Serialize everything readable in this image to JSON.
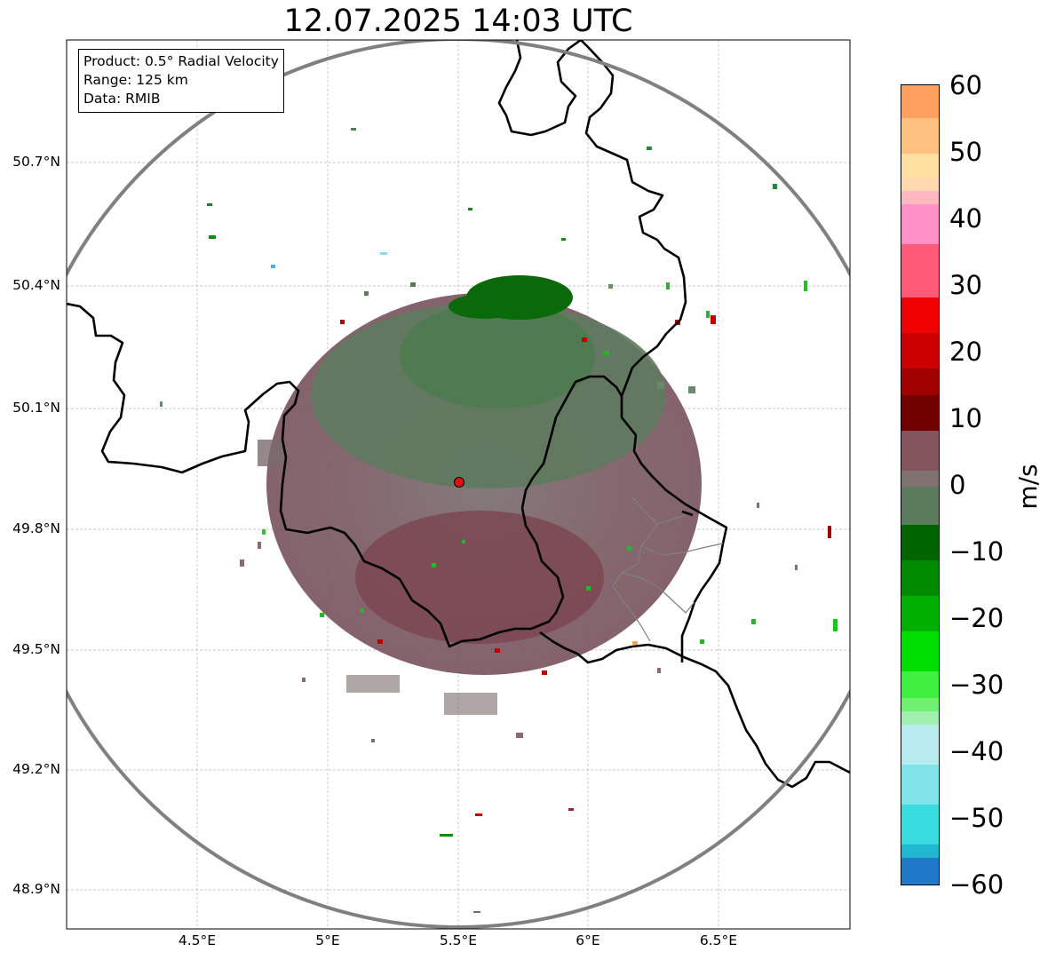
{
  "title": "12.07.2025 14:03 UTC",
  "info_box": {
    "product": "Product: 0.5° Radial Velocity",
    "range": "Range: 125 km",
    "data": "Data: RMIB"
  },
  "map": {
    "lat_ticks": [
      "50.7°N",
      "50.4°N",
      "50.1°N",
      "49.8°N",
      "49.5°N",
      "49.2°N",
      "48.9°N"
    ],
    "lon_ticks": [
      "4.5°E",
      "5°E",
      "5.5°E",
      "6°E",
      "6.5°E"
    ],
    "radar_site_marker_color": "#e01010",
    "range_ring_color": "#808080",
    "border_color": "#000000",
    "district_border_color": "#808080"
  },
  "colorbar": {
    "label": "m/s",
    "ticks": [
      "60",
      "50",
      "40",
      "30",
      "20",
      "10",
      "0",
      "−10",
      "−20",
      "−30",
      "−40",
      "−50",
      "−60"
    ],
    "range": [
      -60,
      60
    ],
    "colors": {
      "v_-60": "#1f78c8",
      "v_-50": "#2ad8d8",
      "v_-40": "#a8e8ec",
      "v_-30": "#40f040",
      "v_-20": "#00c000",
      "v_-10": "#006400",
      "v_-5": "#5a7a5a",
      "v_0": "#7a7070",
      "v_5": "#7a4a52",
      "v_10": "#6a0000",
      "v_20": "#c00000",
      "v_28": "#f00000",
      "v_30": "#ff5068",
      "v_40": "#ff8ac8",
      "v_45": "#ffd8a8",
      "v_50": "#ffc070",
      "v_60": "#ffa060"
    }
  }
}
